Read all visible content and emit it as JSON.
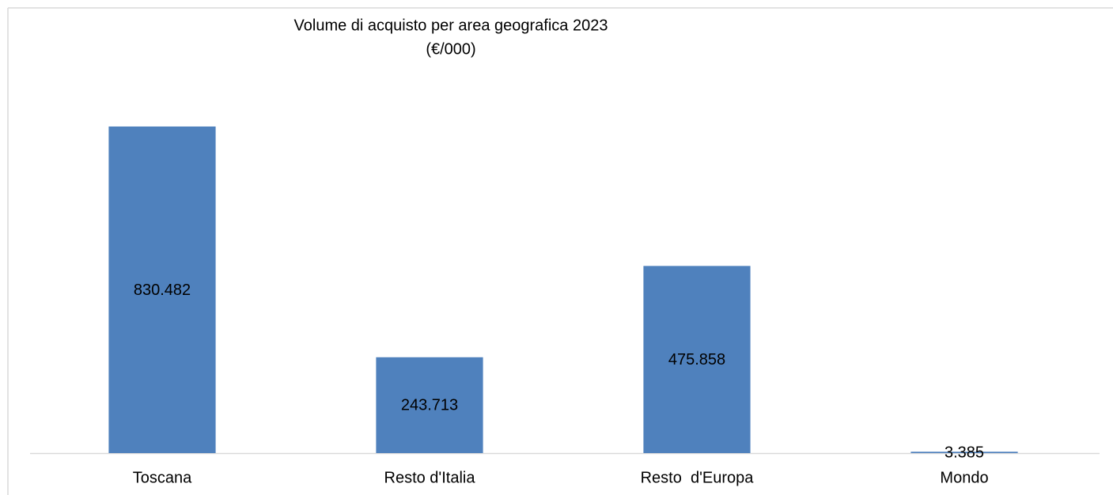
{
  "chart_data": {
    "type": "bar",
    "title": "Volume di acquisto per area geografica 2023",
    "subtitle": "(€/000)",
    "categories": [
      "Toscana",
      "Resto d'Italia",
      "Resto  d'Europa",
      "Mondo"
    ],
    "values": [
      830482,
      243713,
      475858,
      3385
    ],
    "value_labels": [
      "830.482",
      "243.713",
      "475.858",
      "3.385"
    ],
    "color": "#4f81bd",
    "ylim": [
      0,
      900000
    ]
  }
}
